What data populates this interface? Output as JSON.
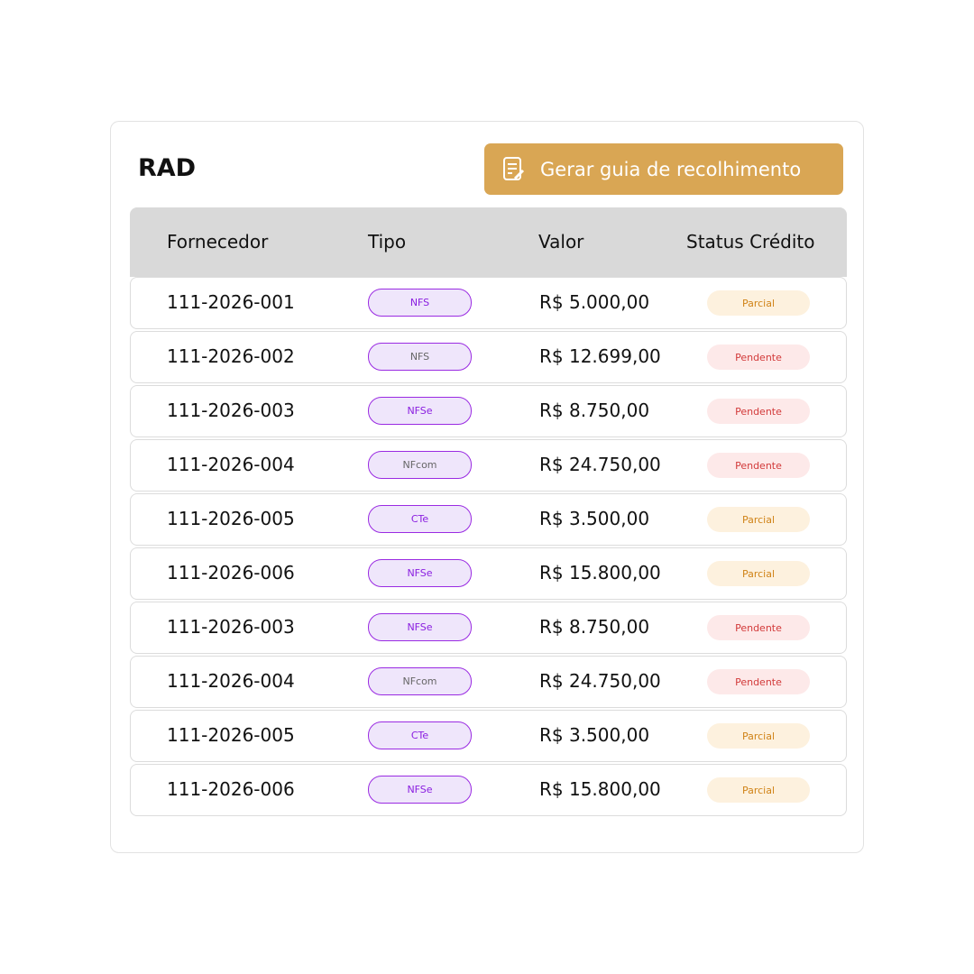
{
  "header": {
    "title": "RAD",
    "button": "Gerar guia de recolhimento"
  },
  "table": {
    "columns": [
      "Fornecedor",
      "Tipo",
      "Valor",
      "Status Crédito"
    ],
    "rows": [
      [
        "111-2026-001",
        "NFS",
        "R$ 5.000,00",
        "Parcial"
      ],
      [
        "111-2026-002",
        "NFS",
        "R$ 12.699,00",
        "Pendente"
      ],
      [
        "111-2026-003",
        "NFSe",
        "R$ 8.750,00",
        "Pendente"
      ],
      [
        "111-2026-004",
        "NFcom",
        "R$ 24.750,00",
        "Pendente"
      ],
      [
        "111-2026-005",
        "CTe",
        "R$ 3.500,00",
        "Parcial"
      ],
      [
        "111-2026-006",
        "NFSe",
        "R$ 15.800,00",
        "Parcial"
      ],
      [
        "111-2026-003",
        "NFSe",
        "R$ 8.750,00",
        "Pendente"
      ],
      [
        "111-2026-004",
        "NFcom",
        "R$ 24.750,00",
        "Pendente"
      ],
      [
        "111-2026-005",
        "CTe",
        "R$ 3.500,00",
        "Parcial"
      ],
      [
        "111-2026-006",
        "NFSe",
        "R$ 15.800,00",
        "Parcial"
      ]
    ]
  }
}
